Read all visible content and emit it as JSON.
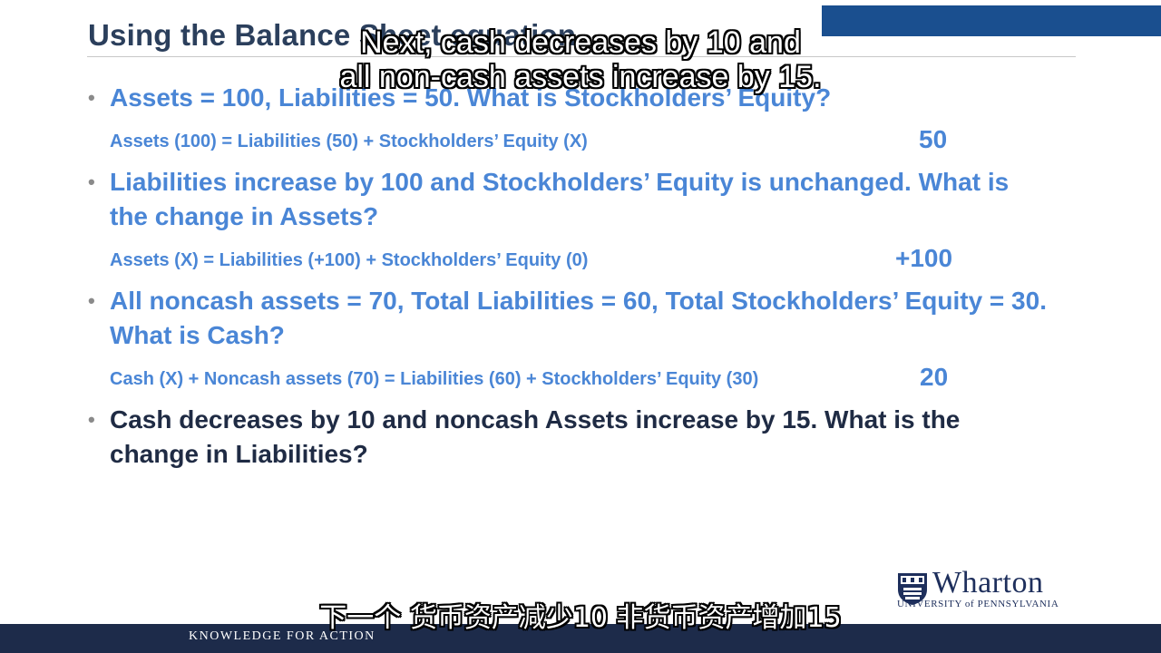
{
  "slide": {
    "title": "Using the Balance Sheet equation",
    "bullets": [
      {
        "text": "Assets = 100, Liabilities = 50.  What is Stockholders’ Equity?",
        "equation": "Assets (100) = Liabilities (50) + Stockholders’ Equity (X)",
        "answer": "50"
      },
      {
        "text": "Liabilities increase by 100 and Stockholders’ Equity is unchanged.  What is the change in Assets?",
        "equation": "Assets (X) = Liabilities (+100) + Stockholders’ Equity (0)",
        "answer": "+100"
      },
      {
        "text": "All noncash assets = 70, Total Liabilities = 60, Total Stockholders’ Equity = 30.  What is Cash?",
        "equation": "Cash (X) + Noncash assets (70) = Liabilities (60) + Stockholders’ Equity (30)",
        "answer": "20"
      },
      {
        "text": "Cash decreases by 10 and noncash Assets increase by 15.  What is the change in Liabilities?"
      }
    ]
  },
  "subtitles": {
    "english_line1": "Next, cash decreases by 10 and",
    "english_line2": "all non-cash assets increase by 15.",
    "chinese": "下一个 货币资产减少10 非货币资产增加15"
  },
  "branding": {
    "logo_text": "Wharton",
    "logo_subtext": "UNIVERSITY of PENNSYLVANIA",
    "footer_tagline": "KNOWLEDGE FOR ACTION"
  },
  "colors": {
    "accent_blue": "#4a86d6",
    "title_navy": "#2b3f5c",
    "footer_navy": "#1d2b4a",
    "top_bar_blue": "#1a4f8f"
  }
}
